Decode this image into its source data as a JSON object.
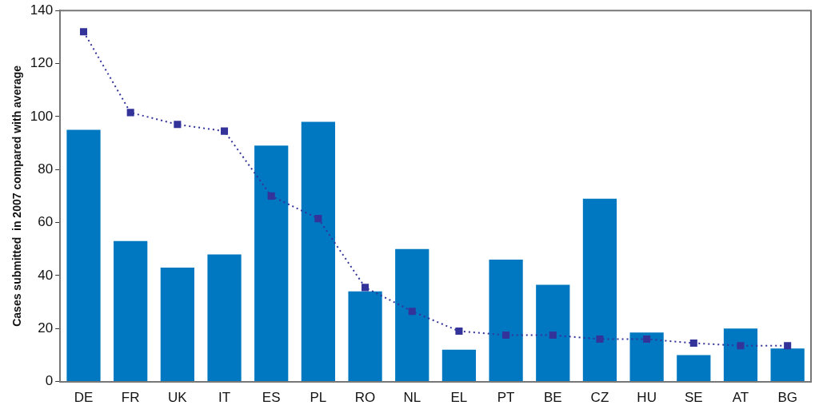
{
  "chart_data": {
    "type": "bar",
    "ylabel": "Cases submitted  in 2007 compared with average",
    "categories": [
      "DE",
      "FR",
      "UK",
      "IT",
      "ES",
      "PL",
      "RO",
      "NL",
      "EL",
      "PT",
      "BE",
      "CZ",
      "HU",
      "SE",
      "AT",
      "BG"
    ],
    "series": [
      {
        "color": "#0078c1",
        "values": [
          95,
          53,
          43,
          48,
          89,
          98,
          34,
          50,
          12,
          46,
          36.5,
          69,
          18.5,
          10,
          20,
          12.5
        ]
      },
      {
        "type": "line",
        "color": "#33339a",
        "marker": "square",
        "line_style": "dotted",
        "values": [
          132,
          101.5,
          97,
          94.5,
          70,
          61.5,
          35.5,
          26.5,
          19,
          17.5,
          17.5,
          16,
          16,
          14.5,
          13.5,
          13.5
        ]
      }
    ],
    "ylim": [
      0,
      140
    ],
    "yticks": [
      0,
      20,
      40,
      60,
      80,
      100,
      120,
      140
    ],
    "grid": false,
    "legend": false
  }
}
